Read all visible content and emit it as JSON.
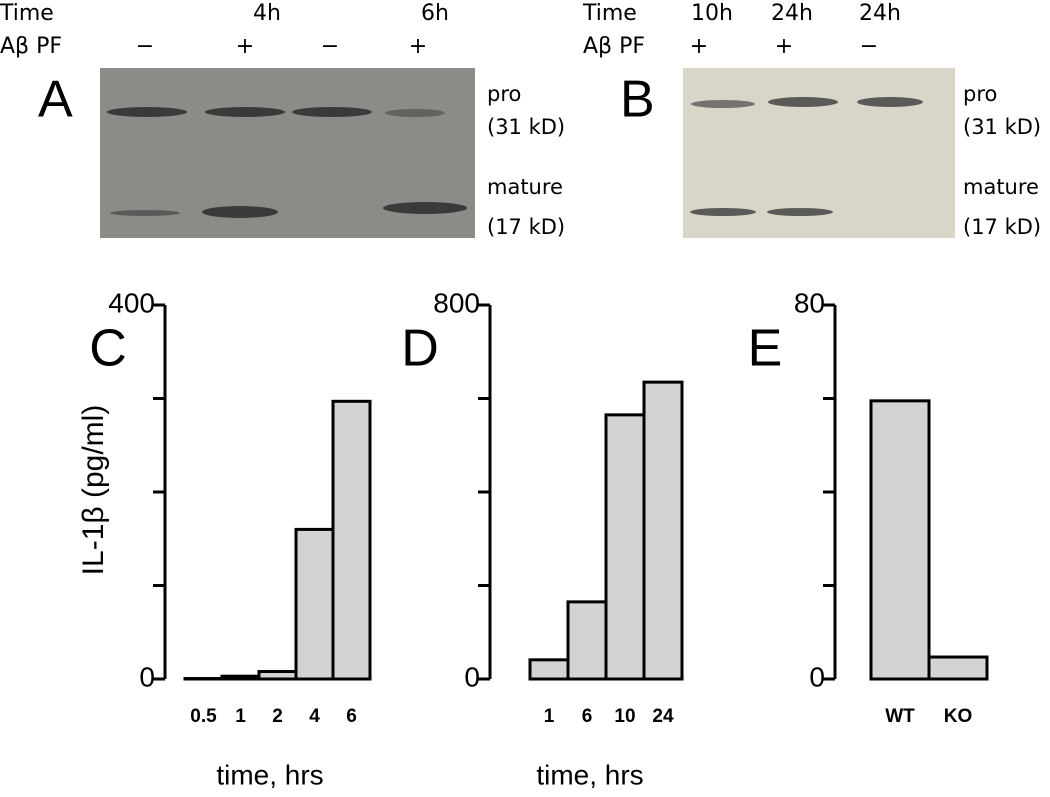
{
  "blots": [
    {
      "letter": "A",
      "time_label": "Time",
      "times": [
        "4h",
        "6h"
      ],
      "treatment_label": "Aβ PF",
      "treatments": [
        "−",
        "+",
        "−",
        "+"
      ],
      "bands": [
        {
          "name": "pro",
          "size": "(31 kD)"
        },
        {
          "name": "mature",
          "size": "(17 kD)"
        }
      ]
    },
    {
      "letter": "B",
      "time_label": "Time",
      "times": [
        "10h",
        "24h",
        "24h"
      ],
      "treatment_label": "Aβ PF",
      "treatments": [
        "+",
        "+",
        "−"
      ],
      "bands": [
        {
          "name": "pro",
          "size": "(31 kD)"
        },
        {
          "name": "mature",
          "size": "(17 kD)"
        }
      ]
    }
  ],
  "y_axis_label": "IL-1β (pg/ml)",
  "chart_data": [
    {
      "type": "bar",
      "panel": "C",
      "categories": [
        "0.5",
        "1",
        "2",
        "4",
        "6"
      ],
      "values": [
        0.5,
        3,
        8,
        160,
        297
      ],
      "color": "#d3d3d3",
      "ylim": [
        0,
        400
      ],
      "yticks": [
        0,
        400
      ],
      "minor_yticks": [
        100,
        200,
        300
      ],
      "xlabel": "time, hrs"
    },
    {
      "type": "bar",
      "panel": "D",
      "categories": [
        "1",
        "6",
        "10",
        "24"
      ],
      "values": [
        41,
        165,
        565,
        635
      ],
      "color": "#d3d3d3",
      "ylim": [
        0,
        800
      ],
      "yticks": [
        0,
        800
      ],
      "minor_yticks": [
        200,
        400,
        600
      ],
      "xlabel": "time, hrs"
    },
    {
      "type": "bar",
      "panel": "E",
      "categories": [
        "WT",
        "KO"
      ],
      "values": [
        59.5,
        4.7
      ],
      "color": "#d3d3d3",
      "ylim": [
        0,
        80
      ],
      "yticks": [
        0,
        80
      ],
      "minor_yticks": [
        20,
        40,
        60
      ]
    }
  ]
}
